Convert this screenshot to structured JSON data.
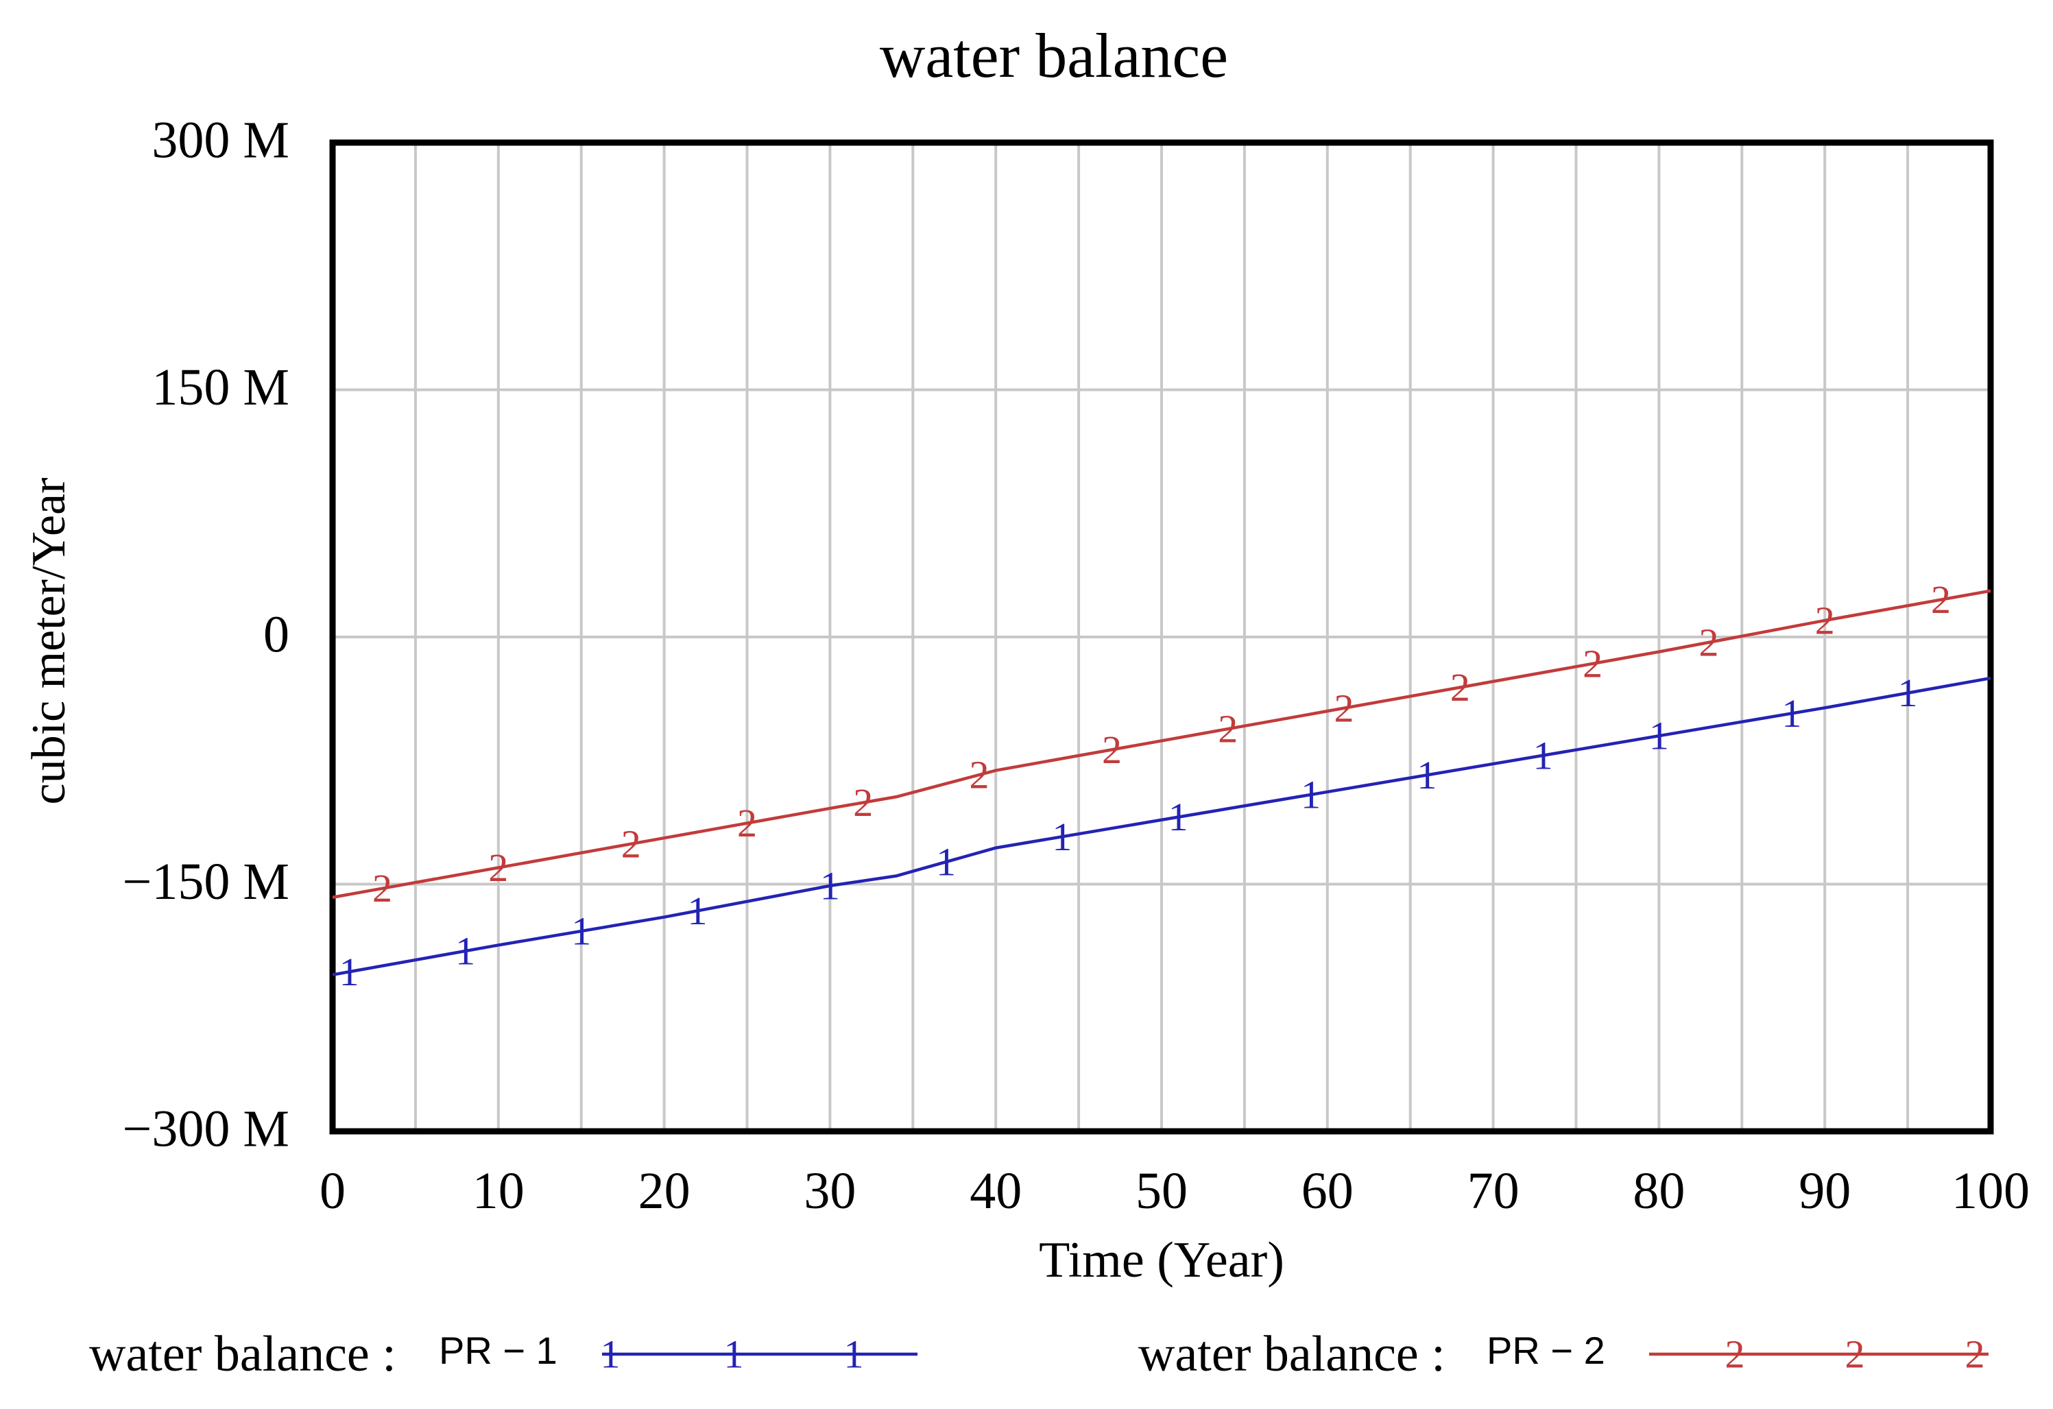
{
  "chart_data": {
    "type": "line",
    "title": "water balance",
    "xlabel": "Time (Year)",
    "ylabel": "cubic meter/Year",
    "xlim": [
      0,
      100
    ],
    "ylim": [
      -300,
      300
    ],
    "y_unit": "million cubic meter/Year",
    "x_ticks": [
      0,
      10,
      20,
      30,
      40,
      50,
      60,
      70,
      80,
      90,
      100
    ],
    "x_tick_labels": [
      "0",
      "10",
      "20",
      "30",
      "40",
      "50",
      "60",
      "70",
      "80",
      "90",
      "100"
    ],
    "y_ticks": [
      300,
      150,
      0,
      -150,
      -300
    ],
    "y_tick_labels": [
      "300 M",
      "150 M",
      "0",
      "−150 M",
      "−300 M"
    ],
    "grid": true,
    "legend_position": "bottom",
    "series": [
      {
        "name": "PR − 1",
        "legend_prefix": "water balance :",
        "marker": "1",
        "color": "#2323b4",
        "x": [
          0,
          10,
          20,
          30,
          34,
          40,
          50,
          60,
          70,
          80,
          90,
          100
        ],
        "values": [
          -205,
          -187,
          -170,
          -151,
          -145,
          -128,
          -111,
          -94,
          -77,
          -60,
          -43,
          -25
        ],
        "marker_x": [
          1,
          8,
          15,
          22,
          30,
          37,
          44,
          51,
          59,
          66,
          73,
          80,
          88,
          95
        ]
      },
      {
        "name": "PR − 2",
        "legend_prefix": "water balance :",
        "marker": "2",
        "color": "#c23b3b",
        "x": [
          0,
          10,
          20,
          30,
          34,
          40,
          50,
          60,
          70,
          80,
          90,
          100
        ],
        "values": [
          -158,
          -140,
          -122,
          -104,
          -97,
          -81,
          -63,
          -45,
          -27,
          -9,
          10,
          28
        ],
        "marker_x": [
          3,
          10,
          18,
          25,
          32,
          39,
          47,
          54,
          61,
          68,
          76,
          83,
          90,
          97
        ]
      }
    ]
  }
}
